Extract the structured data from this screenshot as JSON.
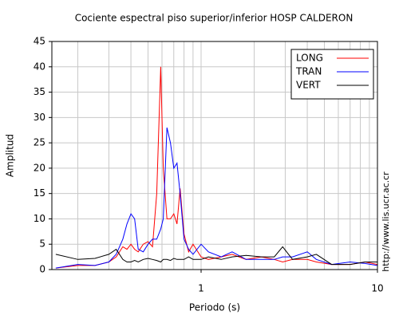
{
  "chart_data": {
    "type": "line",
    "title": "Cociente espectral piso superior/inferior  HOSP CALDERON",
    "xlabel": "Periodo (s)",
    "ylabel": "Amplitud",
    "side_note": "http://www.lis.ucr.ac.cr",
    "xscale": "log",
    "grid": true,
    "legend": "upper-right",
    "xlim": [
      0.1425,
      10
    ],
    "ylim": [
      0,
      45
    ],
    "xticks": [
      1,
      10
    ],
    "xminor": [
      0.2,
      0.3,
      0.4,
      0.5,
      0.6,
      0.7,
      0.8,
      0.9,
      2,
      3,
      4,
      5,
      6,
      7,
      8,
      9
    ],
    "yticks": [
      0,
      5,
      10,
      15,
      20,
      25,
      30,
      35,
      40,
      45
    ],
    "x": [
      0.15,
      0.2,
      0.25,
      0.3,
      0.33,
      0.36,
      0.38,
      0.4,
      0.42,
      0.44,
      0.47,
      0.5,
      0.53,
      0.56,
      0.59,
      0.61,
      0.64,
      0.67,
      0.7,
      0.73,
      0.76,
      0.8,
      0.85,
      0.9,
      1.0,
      1.1,
      1.3,
      1.5,
      1.8,
      2.2,
      2.6,
      2.9,
      3.3,
      4,
      4.5,
      5.5,
      7,
      8.5,
      10
    ],
    "series": [
      {
        "name": "LONG",
        "color": "#ff0000",
        "values": [
          0.3,
          0.8,
          0.8,
          1.5,
          2.5,
          4.5,
          4,
          5,
          4,
          3.5,
          5,
          5.5,
          4.5,
          15,
          40,
          20,
          10,
          10,
          11,
          9,
          16,
          7,
          3.5,
          5,
          2.5,
          2,
          2.5,
          3,
          2,
          2.5,
          2,
          1.5,
          2,
          2,
          1.5,
          1,
          1,
          1.5,
          1
        ]
      },
      {
        "name": "TRAN",
        "color": "#0000ff",
        "values": [
          0.3,
          1,
          0.8,
          1.5,
          3,
          6,
          9,
          11,
          10,
          4,
          3.5,
          5,
          6,
          6,
          8,
          10,
          28,
          25,
          20,
          21,
          15,
          6,
          4,
          3,
          5,
          3.5,
          2.5,
          3.5,
          2,
          2,
          2,
          2.5,
          2.5,
          3.5,
          2,
          1,
          1.5,
          1.2,
          0.8
        ]
      },
      {
        "name": "VERT",
        "color": "#000000",
        "values": [
          3,
          2,
          2.2,
          3,
          4,
          2,
          1.5,
          1.5,
          1.8,
          1.5,
          2,
          2.2,
          2,
          1.8,
          1.5,
          2,
          2,
          1.8,
          2.2,
          2,
          2,
          2,
          2.5,
          2,
          2,
          2.5,
          2,
          2.5,
          2.8,
          2.5,
          2.5,
          4.5,
          2,
          2.5,
          3,
          1,
          1,
          1.5,
          1.5
        ]
      }
    ]
  }
}
